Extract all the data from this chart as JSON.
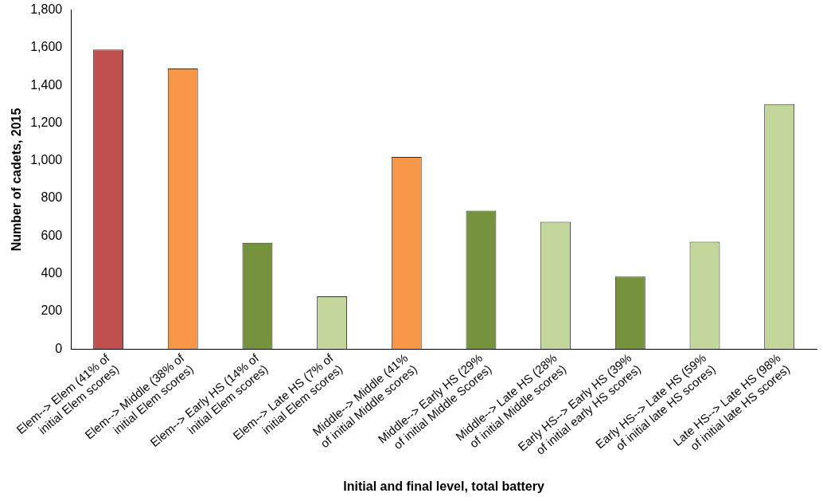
{
  "chart_data": {
    "type": "bar",
    "xlabel": "Initial and final level, total battery",
    "ylabel": "Number of cadets, 2015",
    "categories": [
      "Elem--> Elem (41% of\ninitial Elem scores)",
      "Elem--> Middle (38% of\ninitial Elem scores)",
      "Elem--> Early HS (14% of\ninitial Elem scores)",
      "Elem--> Late HS (7% of\ninitial Elem scores)",
      "Middle--> Middle (41%\nof initial Middle scores)",
      "Middle--> Early HS (29%\nof initial Middle Scores)",
      "Middle--> Late HS (28%\nof initial Middle scores)",
      "Early HS--> Early HS (39%\nof initial early HS scores)",
      "Early HS--> Late HS (59%\nof initial late HS scores)",
      "Late HS--> Late HS (98%\nof initial late HS scores)"
    ],
    "values": [
      1590,
      1490,
      565,
      280,
      1020,
      735,
      675,
      385,
      570,
      1300
    ],
    "colors": [
      "#c0504d",
      "#f79646",
      "#76923c",
      "#c3d69b",
      "#f79646",
      "#76923c",
      "#c3d69b",
      "#76923c",
      "#c3d69b",
      "#c3d69b"
    ],
    "ylim": [
      0,
      1800
    ],
    "yticks": [
      0,
      200,
      400,
      600,
      800,
      {
        "value": 1000,
        "label": "1,000"
      },
      {
        "value": 1200,
        "label": "1,200"
      },
      {
        "value": 1400,
        "label": "1,400"
      },
      {
        "value": 1600,
        "label": "1,600"
      },
      {
        "value": 1800,
        "label": "1,800"
      }
    ],
    "grid": false,
    "legend": false
  }
}
